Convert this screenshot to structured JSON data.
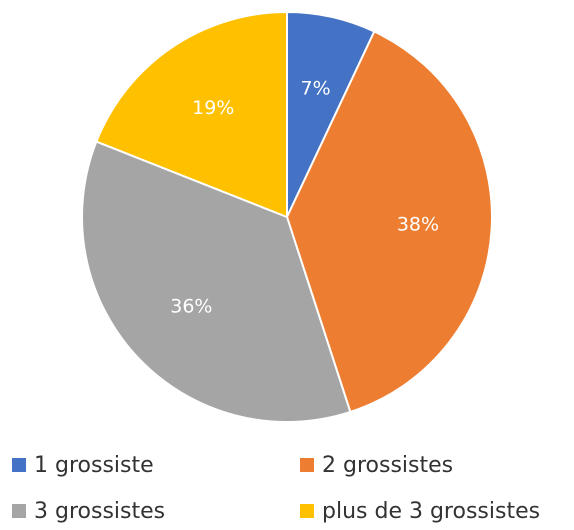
{
  "chart_data": {
    "type": "pie",
    "categories": [
      "1 grossiste",
      "2 grossistes",
      "3 grossistes",
      "plus de 3 grossistes"
    ],
    "values": [
      7,
      38,
      36,
      19
    ],
    "value_labels": [
      "7%",
      "38%",
      "36%",
      "19%"
    ],
    "colors": [
      "#4472c4",
      "#ed7d31",
      "#a5a5a5",
      "#ffc000"
    ],
    "legend": "bottom"
  }
}
